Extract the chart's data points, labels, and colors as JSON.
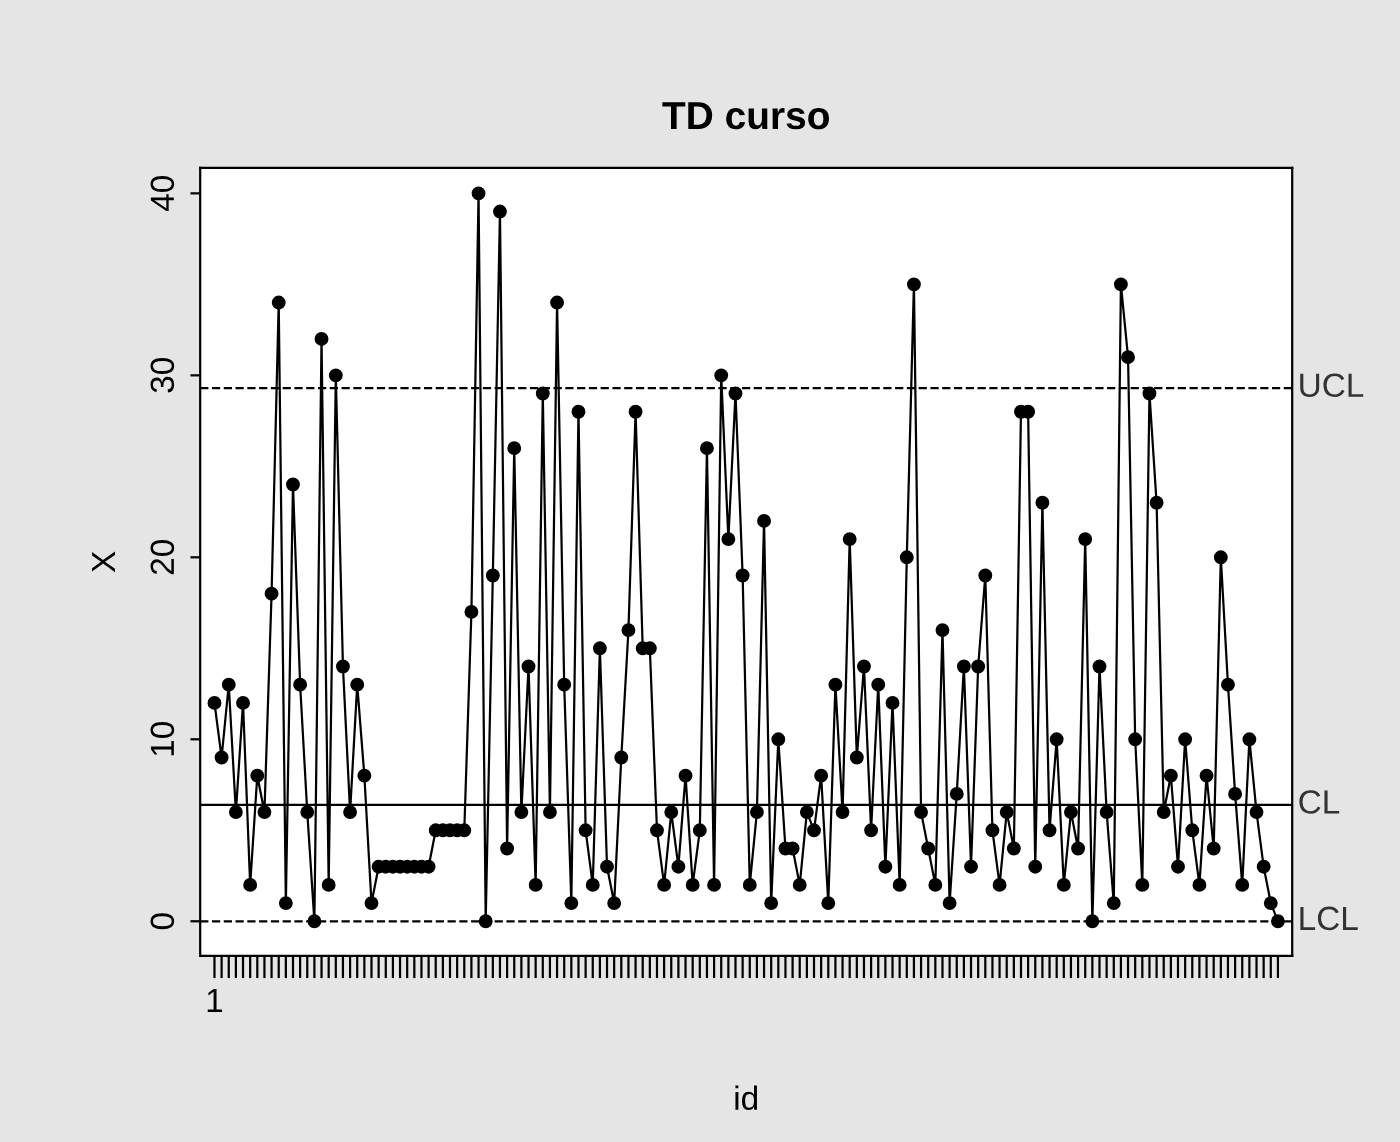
{
  "chart_data": {
    "type": "line",
    "title": "TD curso",
    "xlabel": "id",
    "ylabel": "X",
    "categories": [
      "1",
      null,
      null,
      null,
      null,
      null,
      null,
      null,
      null,
      null,
      null,
      null,
      null,
      null,
      null,
      null,
      null,
      null,
      null,
      null,
      null,
      null,
      null,
      null,
      null,
      null,
      null,
      null,
      null,
      null,
      null,
      null,
      null,
      null,
      null,
      null,
      null,
      null,
      null,
      null,
      null,
      null,
      null,
      null,
      null,
      null,
      null,
      null,
      null,
      null,
      null,
      null,
      null,
      null,
      null,
      null,
      null,
      null,
      null,
      null,
      null,
      null,
      null,
      null,
      null,
      null,
      null,
      null,
      null,
      null,
      null,
      null,
      null,
      null,
      null,
      null,
      null,
      null,
      null,
      null,
      null,
      null,
      null,
      null,
      null,
      null,
      null,
      null,
      null,
      null,
      null,
      null,
      null,
      null,
      null,
      null,
      null,
      null,
      null,
      null,
      null,
      null,
      null,
      null,
      null,
      null,
      null,
      null,
      null,
      null,
      null,
      null,
      null,
      null,
      null,
      null,
      null,
      null,
      null,
      null,
      null,
      null,
      null,
      null,
      null,
      null,
      null,
      null,
      null,
      null,
      null,
      null,
      null,
      null,
      null,
      null,
      null,
      null,
      null,
      null,
      null,
      null,
      null,
      null,
      null,
      null,
      null,
      null,
      null,
      null
    ],
    "series": [
      {
        "color": "#000000",
        "values": [
          12,
          9,
          13,
          6,
          12,
          2,
          8,
          6,
          18,
          34,
          1,
          24,
          13,
          6,
          0,
          32,
          2,
          30,
          14,
          6,
          13,
          8,
          1,
          3,
          3,
          3,
          3,
          3,
          3,
          3,
          3,
          5,
          5,
          5,
          5,
          5,
          17,
          40,
          0,
          19,
          39,
          4,
          26,
          6,
          14,
          2,
          29,
          6,
          34,
          13,
          1,
          28,
          5,
          2,
          15,
          3,
          1,
          9,
          16,
          28,
          15,
          15,
          5,
          2,
          6,
          3,
          8,
          2,
          5,
          26,
          2,
          30,
          21,
          29,
          19,
          2,
          6,
          22,
          1,
          10,
          4,
          4,
          2,
          6,
          5,
          8,
          1,
          13,
          6,
          21,
          9,
          14,
          5,
          13,
          3,
          12,
          2,
          20,
          35,
          6,
          4,
          2,
          16,
          1,
          7,
          14,
          3,
          14,
          19,
          5,
          2,
          6,
          4,
          28,
          28,
          3,
          23,
          5,
          10,
          2,
          6,
          4,
          21,
          0,
          14,
          6,
          1,
          35,
          31,
          10,
          2,
          29,
          23,
          6,
          8,
          3,
          10,
          5,
          2,
          8,
          4,
          20,
          13,
          7,
          2,
          10,
          6,
          3,
          1,
          0
        ]
      }
    ],
    "marker": "circle",
    "line_style": "solid",
    "grid": false,
    "ylim": [
      -1.9,
      41.4
    ],
    "yticks": [
      0,
      10,
      20,
      30,
      40
    ],
    "ref_lines": [
      {
        "axis": "y",
        "value": 29.3,
        "label": "UCL",
        "line_style": "dashed",
        "color": "#000000"
      },
      {
        "axis": "y",
        "value": 6.4,
        "label": "CL",
        "line_style": "solid",
        "color": "#000000"
      },
      {
        "axis": "y",
        "value": 0,
        "label": "LCL",
        "line_style": "dashed",
        "color": "#000000"
      }
    ]
  }
}
